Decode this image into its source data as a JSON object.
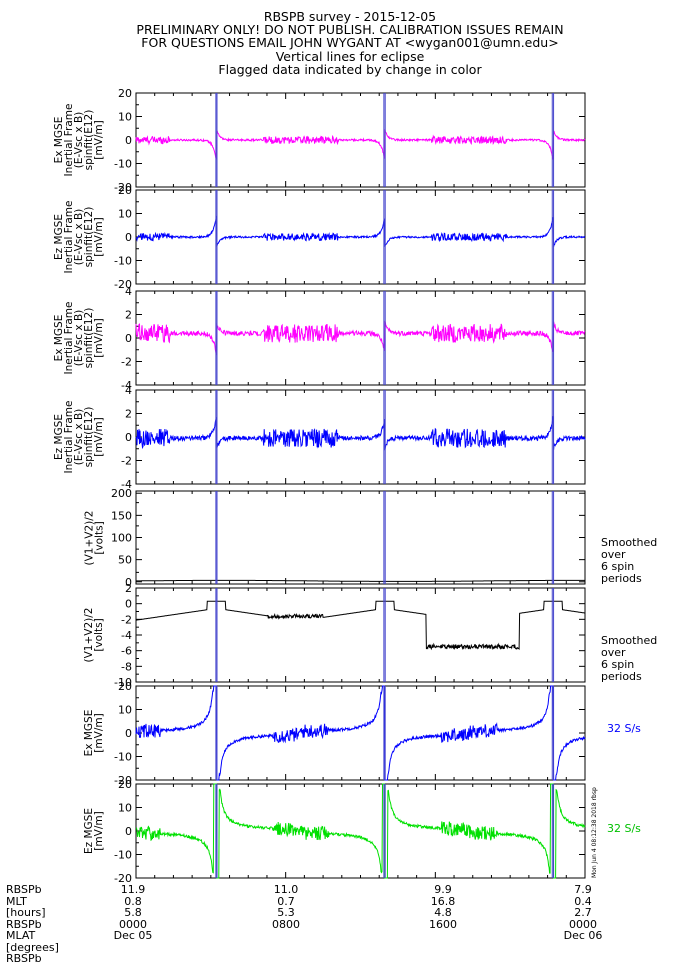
{
  "header": {
    "title": "RBSPB survey  -  2015-12-05",
    "line2": "PRELIMINARY ONLY! DO NOT PUBLISH. CALIBRATION ISSUES REMAIN",
    "line3": "FOR QUESTIONS EMAIL JOHN WYGANT AT <wygan001@umn.edu>",
    "line4": "Vertical lines for eclipse",
    "line5": "Flagged data indicated by change in color"
  },
  "colors": {
    "magenta": "#ff00ff",
    "blue": "#0000ff",
    "black": "#000000",
    "green": "#00e000",
    "eclipse": "#4444cc"
  },
  "chart_data": [
    {
      "type": "line",
      "ylabel": "Ex MGSE\nInertial Frame\n(E-Vsc x B)\nspinfit(E12)\n[mV/m]",
      "ylim": [
        -20,
        20
      ],
      "yticks": [
        "20",
        "10",
        "0",
        "-10",
        "-20"
      ],
      "series": [
        {
          "color": "magenta",
          "style": "spike"
        }
      ]
    },
    {
      "type": "line",
      "ylabel": "Ez MGSE\nInertial Frame\n(E-Vsc x B)\nspinfit(E12)\n[mV/m]",
      "ylim": [
        -20,
        20
      ],
      "yticks": [
        "20",
        "10",
        "0",
        "-10",
        "-20"
      ],
      "series": [
        {
          "color": "blue",
          "style": "spike"
        }
      ]
    },
    {
      "type": "line",
      "ylabel": "Ex MGSE\nInertial Frame\n(E-Vsc x B)\nspinfit(E12)\n[mV/m]",
      "ylim": [
        -4,
        4
      ],
      "yticks": [
        "4",
        "2",
        "0",
        "-2",
        "-4"
      ],
      "series": [
        {
          "color": "magenta",
          "style": "spike"
        }
      ]
    },
    {
      "type": "line",
      "ylabel": "Ez MGSE\nInertial Frame\n(E-Vsc x B)\nspinfit(E12)\n[mV/m]",
      "ylim": [
        -4,
        4
      ],
      "yticks": [
        "4",
        "2",
        "0",
        "-2",
        "-4"
      ],
      "series": [
        {
          "color": "blue",
          "style": "spike"
        }
      ]
    },
    {
      "type": "line",
      "ylabel": "(V1+V2)/2\n[volts]",
      "ylim": [
        -5,
        205
      ],
      "yticks": [
        "200",
        "150",
        "100",
        "50",
        "0"
      ],
      "side_note": "Smoothed\nover\n6 spin\nperiods",
      "series": [
        {
          "color": "black",
          "style": "flat"
        }
      ]
    },
    {
      "type": "line",
      "ylabel": "(V1+V2)/2\n[volts]",
      "ylim": [
        -10,
        2
      ],
      "yticks": [
        "2",
        "0",
        "-2",
        "-4",
        "-6",
        "-8",
        "-10"
      ],
      "side_note": "Smoothed\nover\n6 spin\nperiods",
      "series": [
        {
          "color": "black",
          "style": "potential"
        }
      ]
    },
    {
      "type": "line",
      "ylabel": "Ex MGSE\n[mV/m]",
      "ylim": [
        -20,
        20
      ],
      "yticks": [
        "20",
        "10",
        "0",
        "-10",
        "-20"
      ],
      "side_note": "32 S/s",
      "side_color": "blue",
      "series": [
        {
          "color": "blue",
          "style": "big"
        }
      ]
    },
    {
      "type": "line",
      "ylabel": "Ez MGSE\n[mV/m]",
      "ylim": [
        -20,
        20
      ],
      "yticks": [
        "20",
        "10",
        "0",
        "-10",
        "-20"
      ],
      "side_note": "32 S/s",
      "side_color": "green",
      "series": [
        {
          "color": "green",
          "style": "bigz"
        }
      ]
    }
  ],
  "eclipse_lines": [
    "Dec 05 04:16",
    "Dec 05 04:20",
    "Dec 05 13:15",
    "Dec 05 13:19",
    "Dec 05 22:15",
    "Dec 05 22:19"
  ],
  "x_axis": {
    "row_labels": "RBSPb\nMLT\n[hours]\nRBSPb\nMLAT\n[degrees]\nRBSPb",
    "ticks": [
      {
        "lines": "11.9\n0.8\n5.8\n0000\nDec 05"
      },
      {
        "lines": "11.0\n0.7\n5.3\n0800"
      },
      {
        "lines": "9.9\n16.8\n4.8\n1600"
      },
      {
        "lines": "7.9\n0.4\n2.7\n0000\nDec 06"
      }
    ]
  },
  "stamp": "Mon Jun  4 08:12:38 2018 rbsp"
}
